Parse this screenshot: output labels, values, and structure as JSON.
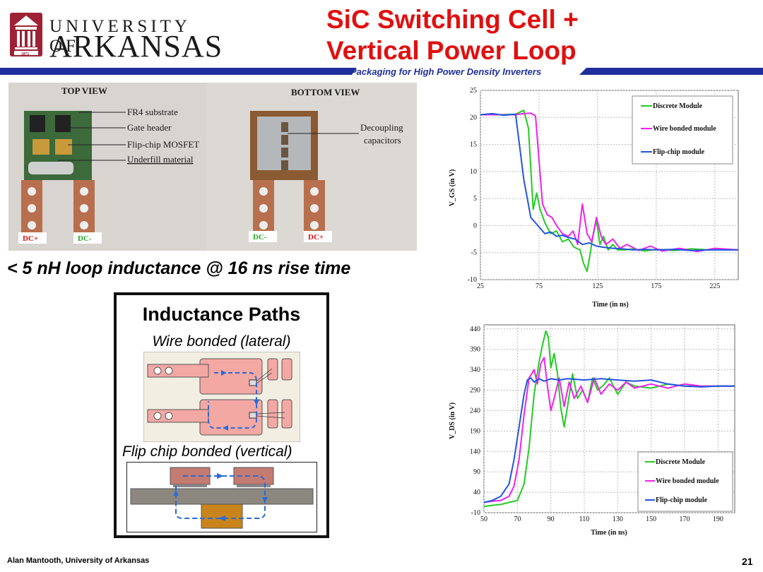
{
  "header": {
    "logo_line1": "UNIVERSITY OF",
    "logo_line2": "ARKANSAS",
    "logo_year": "1871",
    "title_line1": "SiC Switching Cell +",
    "title_line2": "Vertical Power Loop",
    "subtitle": "Packaging for High Power Density Inverters"
  },
  "photo": {
    "top_view": "TOP VIEW",
    "bottom_view": "BOTTOM VIEW",
    "labels": [
      "FR4 substrate",
      "Gate header",
      "Flip-chip MOSFET",
      "Underfill material"
    ],
    "decoupling_line1": "Decoupling",
    "decoupling_line2": "capacitors",
    "terminals_top": [
      "DC+",
      "DC-"
    ],
    "terminals_bottom": [
      "DC-",
      "DC+"
    ]
  },
  "statement": "< 5 nH loop inductance @ 16 ns rise time",
  "inductance": {
    "title": "Inductance Paths",
    "wire_label": "Wire bonded (lateral)",
    "flip_label": "Flip chip bonded (vertical)"
  },
  "colors": {
    "discrete": "#22cc22",
    "wire": "#ee22ee",
    "flip": "#2255dd",
    "title_red": "#e01010",
    "banner_blue": "#1f2f9c"
  },
  "chart_data": [
    {
      "type": "line",
      "xlabel": "Time (in ns)",
      "ylabel": "V_GS (in V)",
      "xlim": [
        25,
        245
      ],
      "ylim": [
        -10,
        25
      ],
      "xticks": [
        25,
        75,
        125,
        175,
        225
      ],
      "yticks": [
        25,
        20,
        15,
        10,
        5,
        0,
        -5,
        -10
      ],
      "grid": true,
      "legend_position": "top-right",
      "series": [
        {
          "name": "Discrete Module",
          "color": "#22cc22",
          "x": [
            25,
            40,
            55,
            62,
            66,
            70,
            73,
            76,
            80,
            85,
            90,
            95,
            100,
            105,
            110,
            113,
            116,
            118,
            121,
            124,
            127,
            130,
            134,
            138,
            142,
            148,
            155,
            165,
            175,
            190,
            205,
            220,
            235,
            245
          ],
          "y": [
            20.5,
            20.5,
            20.6,
            21.3,
            18,
            3,
            6,
            3,
            0.5,
            -1.5,
            -1,
            -3,
            -2.5,
            -4,
            -4.5,
            -7,
            -8.5,
            -6,
            -2,
            1,
            -3.5,
            -2,
            -4.5,
            -3.5,
            -4.5,
            -4.5,
            -4.3,
            -4.7,
            -4.4,
            -4.6,
            -4.3,
            -4.5,
            -4.4,
            -4.5
          ]
        },
        {
          "name": "Wire bonded module",
          "color": "#ee22ee",
          "x": [
            25,
            40,
            55,
            62,
            68,
            72,
            75,
            78,
            82,
            86,
            90,
            95,
            100,
            104,
            108,
            112,
            116,
            120,
            124,
            128,
            132,
            138,
            144,
            150,
            160,
            170,
            180,
            195,
            210,
            225,
            245
          ],
          "y": [
            20.5,
            20.5,
            20.5,
            20.7,
            20.8,
            20.3,
            12,
            4,
            2,
            1.5,
            0,
            -1.5,
            -2,
            -1,
            -3.5,
            4,
            -1.5,
            -3,
            1.5,
            -2,
            -3.5,
            -2.5,
            -4.2,
            -3.5,
            -4.6,
            -3.8,
            -4.7,
            -4.2,
            -4.8,
            -4.2,
            -4.5
          ]
        },
        {
          "name": "Flip-chip module",
          "color": "#2255dd",
          "x": [
            25,
            35,
            45,
            55,
            60,
            62,
            65,
            68,
            72,
            76,
            80,
            85,
            90,
            95,
            100,
            106,
            112,
            118,
            124,
            130,
            138,
            146,
            155,
            165,
            175,
            190,
            205,
            220,
            235,
            245
          ],
          "y": [
            20.5,
            20.7,
            20.4,
            20.6,
            12,
            8.5,
            5,
            1.5,
            0.5,
            -0.5,
            -1.5,
            -1.2,
            -2,
            -1.8,
            -2.2,
            -2.5,
            -3.5,
            -3.2,
            -3.8,
            -4,
            -4.2,
            -4.3,
            -4.5,
            -4.4,
            -4.5,
            -4.4,
            -4.6,
            -4.5,
            -4.5,
            -4.5
          ]
        }
      ]
    },
    {
      "type": "line",
      "xlabel": "Time (in ns)",
      "ylabel": "V_DS (in V)",
      "xlim": [
        50,
        200
      ],
      "ylim": [
        -10,
        450
      ],
      "xticks": [
        50,
        70,
        90,
        110,
        130,
        150,
        170,
        190
      ],
      "yticks": [
        440,
        390,
        340,
        290,
        240,
        190,
        140,
        90,
        40,
        -10
      ],
      "grid": true,
      "legend_position": "bottom-right",
      "series": [
        {
          "name": "Discrete Module",
          "color": "#22cc22",
          "x": [
            50,
            55,
            60,
            65,
            70,
            74,
            77,
            80,
            83,
            85,
            87,
            88.5,
            90,
            92,
            94,
            96,
            98,
            100,
            103,
            106,
            109,
            112,
            115,
            118,
            121,
            125,
            130,
            135,
            140,
            150,
            160,
            170,
            180,
            190,
            200
          ],
          "y": [
            5,
            8,
            10,
            15,
            20,
            60,
            150,
            280,
            360,
            400,
            435,
            420,
            345,
            380,
            330,
            245,
            200,
            250,
            330,
            270,
            290,
            260,
            320,
            290,
            300,
            320,
            280,
            310,
            300,
            295,
            305,
            300,
            300,
            300,
            300
          ]
        },
        {
          "name": "Wire bonded module",
          "color": "#ee22ee",
          "x": [
            50,
            55,
            60,
            65,
            68,
            71,
            74,
            77,
            80,
            82,
            84,
            86,
            88,
            90,
            92,
            95,
            98,
            101,
            104,
            108,
            112,
            116,
            120,
            125,
            130,
            135,
            140,
            150,
            160,
            170,
            180,
            190,
            200
          ],
          "y": [
            15,
            18,
            20,
            30,
            55,
            120,
            230,
            320,
            340,
            305,
            355,
            370,
            300,
            240,
            270,
            320,
            250,
            310,
            270,
            300,
            260,
            320,
            280,
            305,
            290,
            310,
            295,
            305,
            295,
            305,
            300,
            300,
            300
          ]
        },
        {
          "name": "Flip-chip module",
          "color": "#2255dd",
          "x": [
            50,
            55,
            60,
            65,
            68,
            71,
            74,
            76,
            78,
            80,
            83,
            86,
            90,
            95,
            100,
            110,
            120,
            130,
            140,
            150,
            160,
            170,
            180,
            190,
            200
          ],
          "y": [
            15,
            20,
            30,
            60,
            120,
            200,
            280,
            315,
            320,
            310,
            318,
            312,
            318,
            315,
            318,
            315,
            318,
            315,
            312,
            315,
            305,
            300,
            298,
            300,
            300
          ]
        }
      ]
    }
  ],
  "footer": {
    "author": "Alan Mantooth, University of Arkansas",
    "page": "21"
  }
}
